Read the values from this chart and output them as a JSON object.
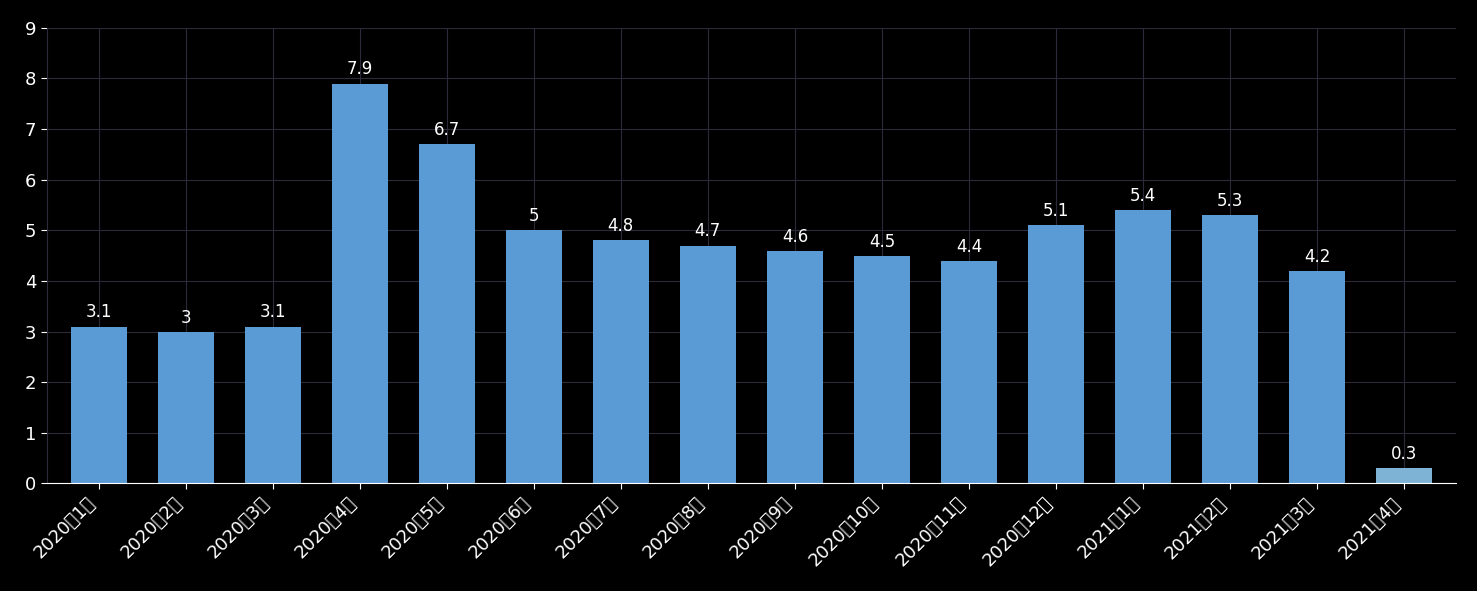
{
  "categories": [
    "2020年1月",
    "2020年2月",
    "2020年3月",
    "2020年4月",
    "2020年5月",
    "2020年6月",
    "2020年7月",
    "2020年8月",
    "2020年9月",
    "2020年10月",
    "2020年11月",
    "2020年12月",
    "2021年1月",
    "2021年2月",
    "2021年3月",
    "2021年4月"
  ],
  "values": [
    3.1,
    3.0,
    3.1,
    7.9,
    6.7,
    5.0,
    4.8,
    4.7,
    4.6,
    4.5,
    4.4,
    5.1,
    5.4,
    5.3,
    4.2,
    0.3
  ],
  "value_labels": [
    "3.1",
    "3",
    "3.1",
    "7.9",
    "6.7",
    "5",
    "4.8",
    "4.7",
    "4.6",
    "4.5",
    "4.4",
    "5.1",
    "5.4",
    "5.3",
    "4.2",
    "0.3"
  ],
  "bar_color": "#5B9BD5",
  "last_bar_color": "#7EB3D6",
  "background_color": "#000000",
  "text_color": "#ffffff",
  "grid_color": "#2a2a3a",
  "ylim": [
    0,
    9
  ],
  "yticks": [
    0,
    1,
    2,
    3,
    4,
    5,
    6,
    7,
    8,
    9
  ],
  "tick_fontsize": 13,
  "value_fontsize": 12,
  "bar_width": 0.65
}
